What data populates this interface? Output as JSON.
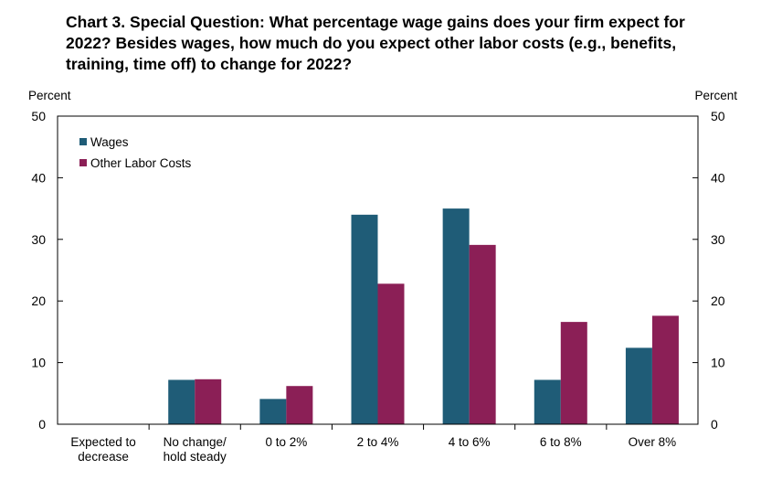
{
  "chart_data": {
    "type": "bar",
    "title": "Chart 3. Special Question: What percentage wage gains does your firm expect for 2022? Besides wages, how much do you expect other labor costs (e.g., benefits, training, time off) to change for 2022?",
    "ylabel_left": "Percent",
    "ylabel_right": "Percent",
    "ylim": [
      0,
      50
    ],
    "yticks": [
      0,
      10,
      20,
      30,
      40,
      50
    ],
    "categories": [
      [
        "Expected to",
        "decrease"
      ],
      [
        "No change/",
        "hold steady"
      ],
      [
        "0 to 2%"
      ],
      [
        "2 to 4%"
      ],
      [
        "4 to 6%"
      ],
      [
        "6 to 8%"
      ],
      [
        "Over 8%"
      ]
    ],
    "series": [
      {
        "name": "Wages",
        "color": "#1f5c77",
        "values": [
          0,
          7.2,
          4.1,
          34.0,
          35.0,
          7.2,
          12.4
        ]
      },
      {
        "name": "Other Labor Costs",
        "color": "#8b1f56",
        "values": [
          0,
          7.3,
          6.2,
          22.8,
          29.1,
          16.6,
          17.6
        ]
      }
    ],
    "legend_position": "top-left",
    "grid": false
  }
}
